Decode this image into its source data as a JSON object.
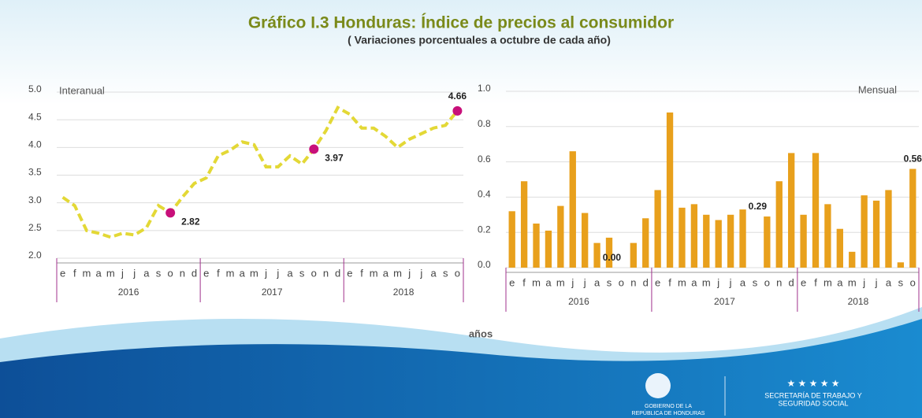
{
  "title": "Gráfico I.3 Honduras: Índice de precios al consumidor",
  "subtitle": "( Variaciones porcentuales a octubre de cada año)",
  "x_label": "años",
  "footer": {
    "gov_line1": "GOBIERNO DE LA",
    "gov_line2": "REPÚBLICA DE HONDURAS",
    "sec_line1": "SECRETARÍA DE TRABAJO Y",
    "sec_line2": "SEGURIDAD SOCIAL"
  },
  "chart_data": [
    {
      "type": "line",
      "label": "Interanual",
      "color": "#e3d836",
      "point_color": "#c8107a",
      "groups": [
        {
          "name": "2016",
          "categories": [
            "e",
            "f",
            "m",
            "a",
            "m",
            "j",
            "j",
            "a",
            "s",
            "o",
            "n",
            "d"
          ]
        },
        {
          "name": "2017",
          "categories": [
            "e",
            "f",
            "m",
            "a",
            "m",
            "j",
            "j",
            "a",
            "s",
            "o",
            "n",
            "d"
          ]
        },
        {
          "name": "2018",
          "categories": [
            "e",
            "f",
            "m",
            "a",
            "m",
            "j",
            "j",
            "a",
            "s",
            "o"
          ]
        }
      ],
      "values": [
        3.1,
        2.95,
        2.5,
        2.45,
        2.38,
        2.45,
        2.42,
        2.55,
        2.95,
        2.82,
        3.1,
        3.35,
        3.45,
        3.85,
        3.95,
        4.1,
        4.05,
        3.65,
        3.65,
        3.85,
        3.7,
        3.97,
        4.3,
        4.72,
        4.6,
        4.35,
        4.35,
        4.2,
        4.0,
        4.15,
        4.25,
        4.35,
        4.4,
        4.66
      ],
      "value_labels": [
        null,
        null,
        null,
        null,
        null,
        null,
        null,
        null,
        null,
        "2.82",
        null,
        null,
        null,
        null,
        null,
        null,
        null,
        null,
        null,
        null,
        null,
        "3.97",
        null,
        null,
        null,
        null,
        null,
        null,
        null,
        null,
        null,
        null,
        null,
        "4.66"
      ],
      "ylim": [
        2.0,
        5.0
      ],
      "yticks": [
        {
          "value": 2,
          "label": "2.0"
        },
        2.5,
        {
          "value": 3,
          "label": "3.0"
        },
        3.5,
        {
          "value": 4,
          "label": "4.0"
        },
        4.5,
        {
          "value": 5,
          "label": "5.0"
        }
      ],
      "grid": true
    },
    {
      "type": "bar",
      "label": "Mensual",
      "color": "#e8a01c",
      "groups": [
        {
          "name": "2016",
          "categories": [
            "e",
            "f",
            "m",
            "a",
            "m",
            "j",
            "j",
            "a",
            "s",
            "o",
            "n",
            "d"
          ]
        },
        {
          "name": "2017",
          "categories": [
            "e",
            "f",
            "m",
            "a",
            "m",
            "j",
            "j",
            "a",
            "s",
            "o",
            "n",
            "d"
          ]
        },
        {
          "name": "2018",
          "categories": [
            "e",
            "f",
            "m",
            "a",
            "m",
            "j",
            "j",
            "a",
            "s",
            "o"
          ]
        }
      ],
      "values": [
        0.32,
        0.49,
        0.25,
        0.21,
        0.35,
        0.66,
        0.31,
        0.14,
        0.17,
        0.0,
        0.14,
        0.28,
        0.44,
        0.88,
        0.34,
        0.36,
        0.3,
        0.27,
        0.3,
        0.33,
        0,
        0.29,
        0.49,
        0.65,
        0.3,
        0.65,
        0.36,
        0.22,
        0.09,
        0.41,
        0.38,
        0.44,
        0.03,
        0.56
      ],
      "value_labels": [
        null,
        null,
        null,
        null,
        null,
        null,
        null,
        null,
        null,
        "0.00",
        null,
        null,
        null,
        null,
        null,
        null,
        null,
        null,
        null,
        null,
        null,
        "0.29",
        null,
        null,
        null,
        null,
        null,
        null,
        null,
        null,
        null,
        null,
        null,
        "0.56"
      ],
      "ylim": [
        0,
        1.0
      ],
      "yticks": [
        {
          "value": 0,
          "label": "0.0"
        },
        0.2,
        0.4,
        0.6,
        0.8,
        {
          "value": 1,
          "label": "1.0"
        }
      ],
      "grid": true
    }
  ]
}
